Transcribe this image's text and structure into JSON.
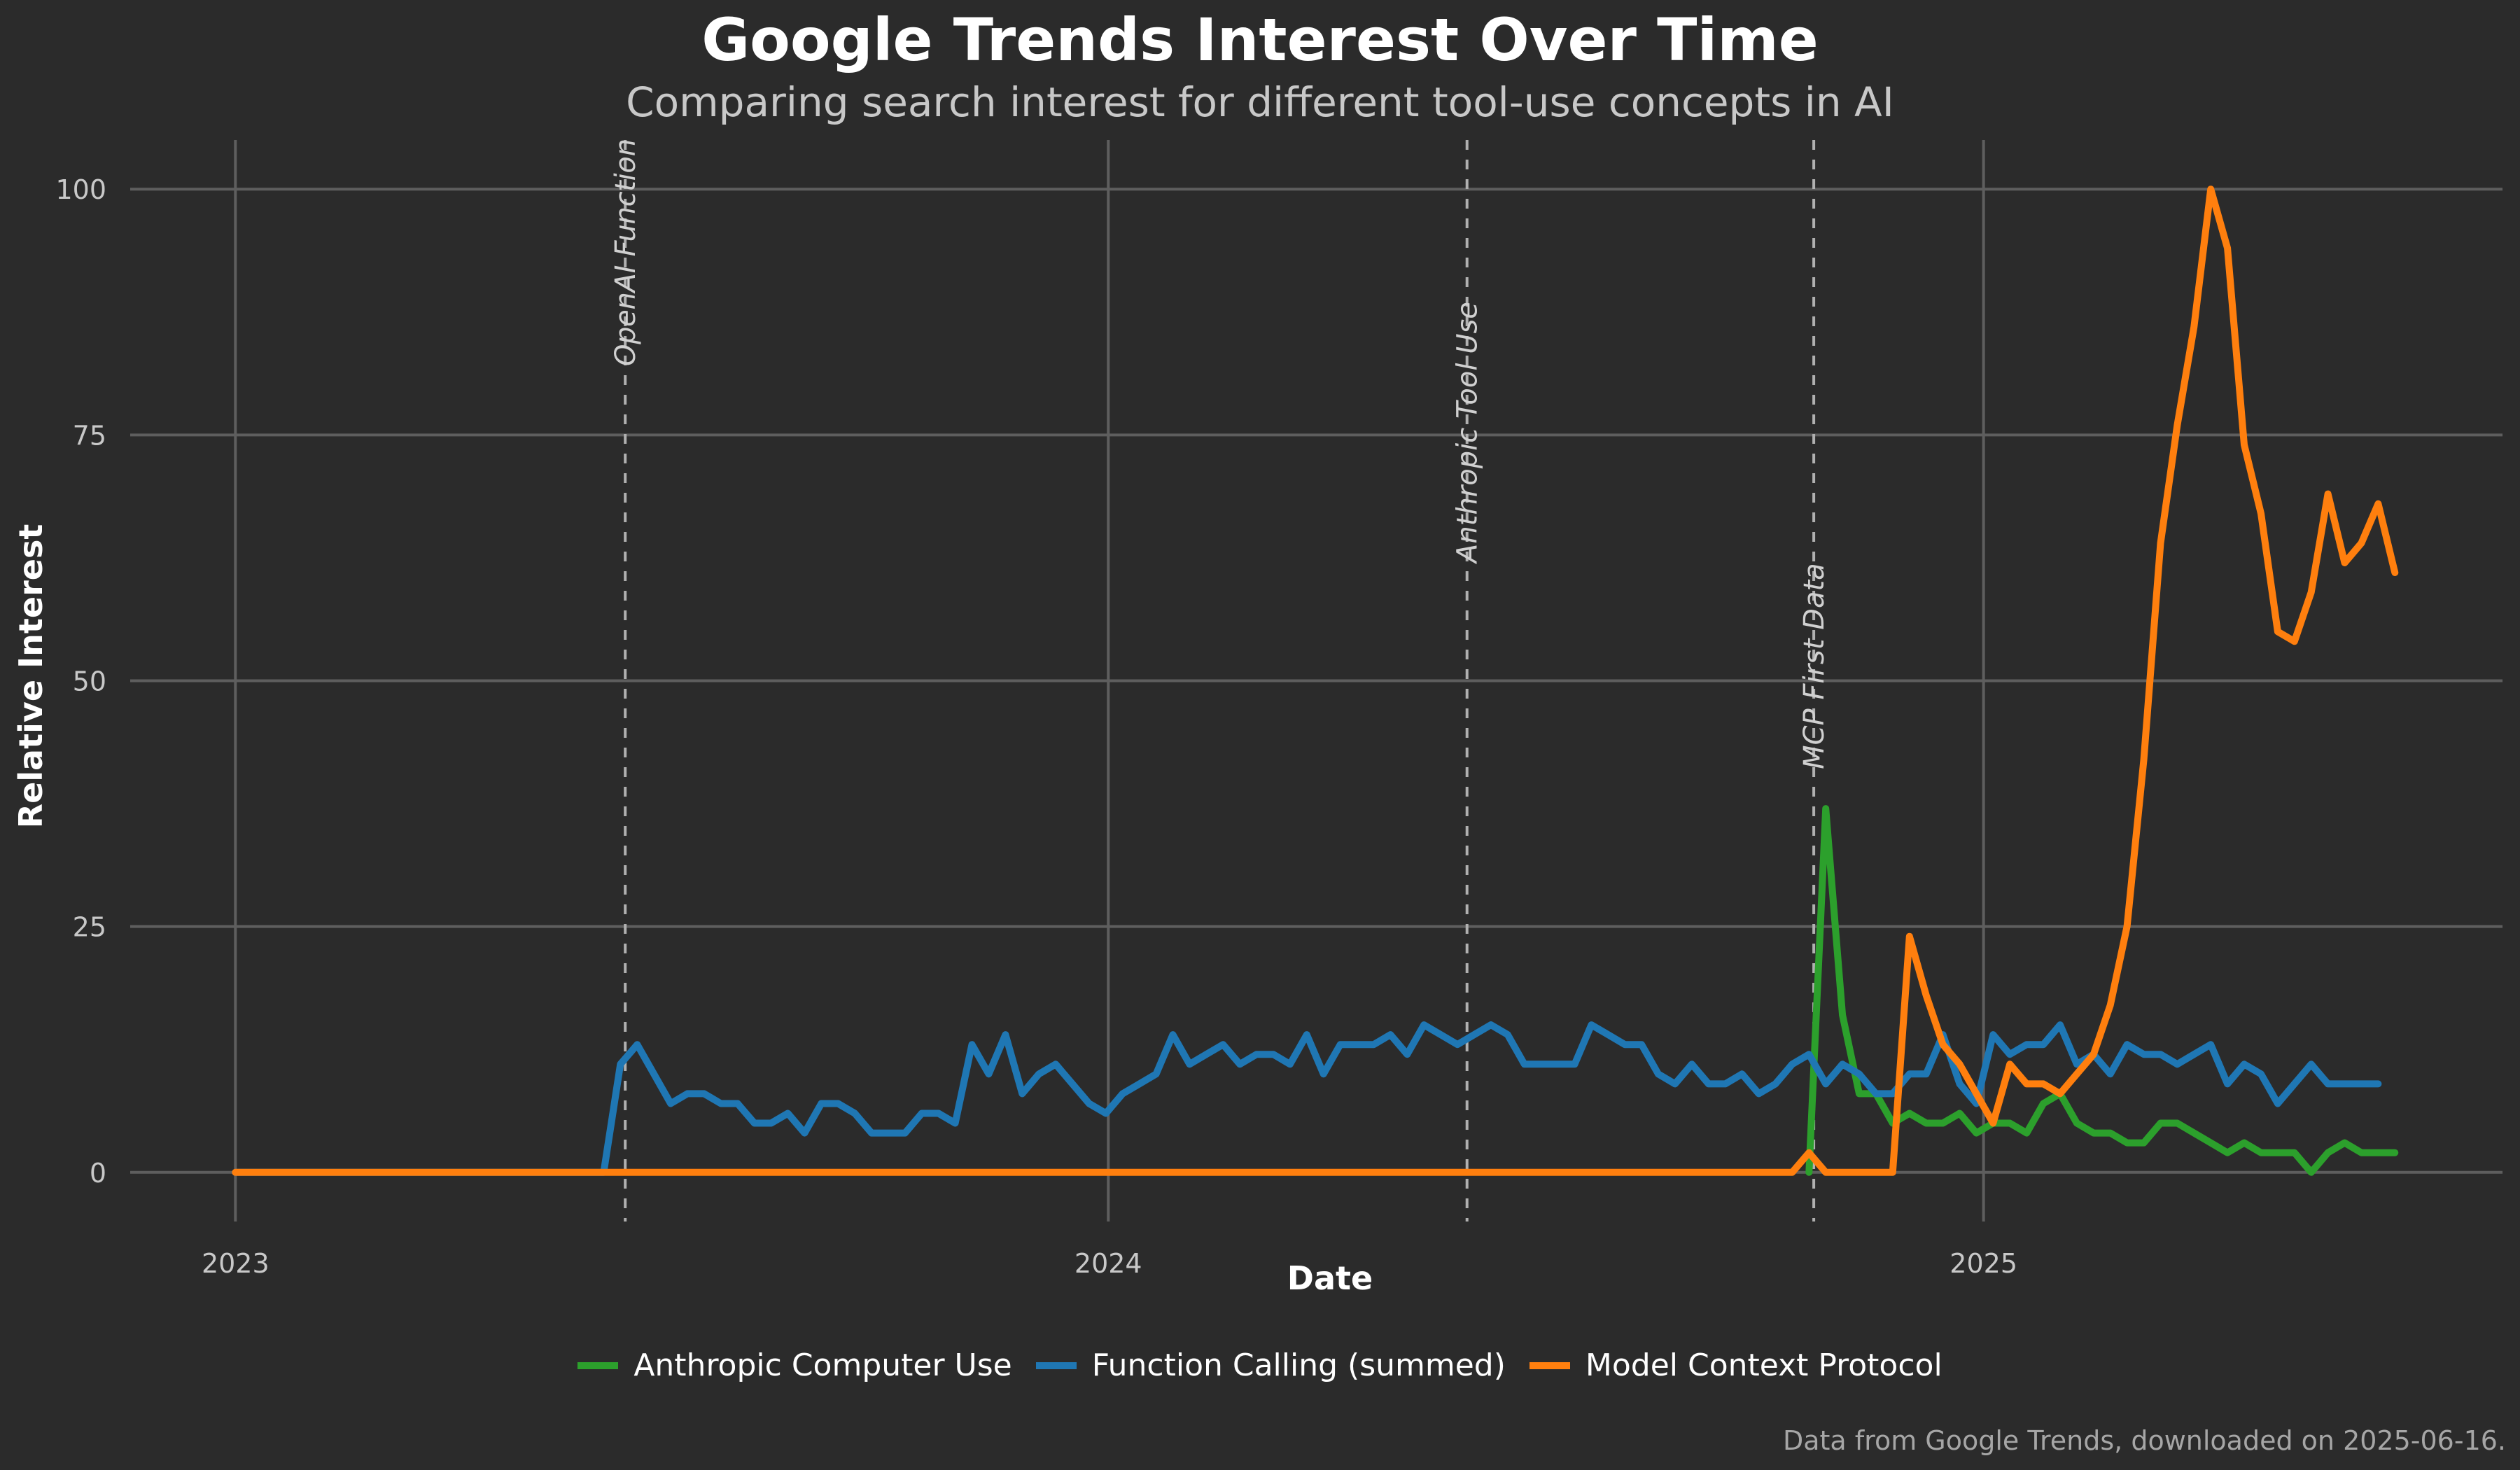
{
  "chart_data": {
    "type": "line",
    "title": "Google Trends Interest Over Time",
    "subtitle": "Comparing search interest for different tool-use concepts in AI",
    "xlabel": "Date",
    "ylabel": "Relative Interest",
    "xlim": [
      "2022-11-18",
      "2025-08-06"
    ],
    "ylim": [
      -5,
      105
    ],
    "xticks": [
      {
        "date": "2023-01-01",
        "label": "2023"
      },
      {
        "date": "2024-01-01",
        "label": "2024"
      },
      {
        "date": "2025-01-01",
        "label": "2025"
      }
    ],
    "yticks": [
      0,
      25,
      50,
      75,
      100
    ],
    "grid": true,
    "legend_position": "bottom-center",
    "annotations": [
      {
        "date": "2023-06-13",
        "label": "OpenAI Function"
      },
      {
        "date": "2024-05-30",
        "label": "Anthropic Tool Use"
      },
      {
        "date": "2024-10-22",
        "label": "MCP First Data"
      }
    ],
    "series": [
      {
        "name": "Anthropic Computer Use",
        "color": "#2ca02c",
        "points": [
          [
            "2024-10-20",
            0
          ],
          [
            "2024-10-27",
            37
          ],
          [
            "2024-11-03",
            16
          ],
          [
            "2024-11-10",
            8
          ],
          [
            "2024-11-17",
            8
          ],
          [
            "2024-11-24",
            5
          ],
          [
            "2024-12-01",
            6
          ],
          [
            "2024-12-08",
            5
          ],
          [
            "2024-12-15",
            5
          ],
          [
            "2024-12-22",
            6
          ],
          [
            "2024-12-29",
            4
          ],
          [
            "2025-01-05",
            5
          ],
          [
            "2025-01-12",
            5
          ],
          [
            "2025-01-19",
            4
          ],
          [
            "2025-01-26",
            7
          ],
          [
            "2025-02-02",
            8
          ],
          [
            "2025-02-09",
            5
          ],
          [
            "2025-02-16",
            4
          ],
          [
            "2025-02-23",
            4
          ],
          [
            "2025-03-02",
            3
          ],
          [
            "2025-03-09",
            3
          ],
          [
            "2025-03-16",
            5
          ],
          [
            "2025-03-23",
            5
          ],
          [
            "2025-03-30",
            4
          ],
          [
            "2025-04-06",
            3
          ],
          [
            "2025-04-13",
            2
          ],
          [
            "2025-04-20",
            3
          ],
          [
            "2025-04-27",
            2
          ],
          [
            "2025-05-04",
            2
          ],
          [
            "2025-05-11",
            2
          ],
          [
            "2025-05-18",
            0
          ],
          [
            "2025-05-25",
            2
          ],
          [
            "2025-06-01",
            3
          ],
          [
            "2025-06-08",
            2
          ],
          [
            "2025-06-15",
            2
          ],
          [
            "2025-06-22",
            2
          ]
        ]
      },
      {
        "name": "Function Calling (summed)",
        "color": "#1f77b4",
        "points": [
          [
            "2023-01-01",
            0
          ],
          [
            "2023-06-04",
            0
          ],
          [
            "2023-06-11",
            11
          ],
          [
            "2023-06-18",
            13
          ],
          [
            "2023-06-25",
            10
          ],
          [
            "2023-07-02",
            7
          ],
          [
            "2023-07-09",
            8
          ],
          [
            "2023-07-16",
            8
          ],
          [
            "2023-07-23",
            7
          ],
          [
            "2023-07-30",
            7
          ],
          [
            "2023-08-06",
            5
          ],
          [
            "2023-08-13",
            5
          ],
          [
            "2023-08-20",
            6
          ],
          [
            "2023-08-27",
            4
          ],
          [
            "2023-09-03",
            7
          ],
          [
            "2023-09-10",
            7
          ],
          [
            "2023-09-17",
            6
          ],
          [
            "2023-09-24",
            4
          ],
          [
            "2023-10-01",
            4
          ],
          [
            "2023-10-08",
            4
          ],
          [
            "2023-10-15",
            6
          ],
          [
            "2023-10-22",
            6
          ],
          [
            "2023-10-29",
            5
          ],
          [
            "2023-11-05",
            13
          ],
          [
            "2023-11-12",
            10
          ],
          [
            "2023-11-19",
            14
          ],
          [
            "2023-11-26",
            8
          ],
          [
            "2023-12-03",
            10
          ],
          [
            "2023-12-10",
            11
          ],
          [
            "2023-12-17",
            9
          ],
          [
            "2023-12-24",
            7
          ],
          [
            "2023-12-31",
            6
          ],
          [
            "2024-01-07",
            8
          ],
          [
            "2024-01-14",
            9
          ],
          [
            "2024-01-21",
            10
          ],
          [
            "2024-01-28",
            14
          ],
          [
            "2024-02-04",
            11
          ],
          [
            "2024-02-11",
            12
          ],
          [
            "2024-02-18",
            13
          ],
          [
            "2024-02-25",
            11
          ],
          [
            "2024-03-03",
            12
          ],
          [
            "2024-03-10",
            12
          ],
          [
            "2024-03-17",
            11
          ],
          [
            "2024-03-24",
            14
          ],
          [
            "2024-03-31",
            10
          ],
          [
            "2024-04-07",
            13
          ],
          [
            "2024-04-14",
            13
          ],
          [
            "2024-04-21",
            13
          ],
          [
            "2024-04-28",
            14
          ],
          [
            "2024-05-05",
            12
          ],
          [
            "2024-05-12",
            15
          ],
          [
            "2024-05-19",
            14
          ],
          [
            "2024-05-26",
            13
          ],
          [
            "2024-06-02",
            14
          ],
          [
            "2024-06-09",
            15
          ],
          [
            "2024-06-16",
            14
          ],
          [
            "2024-06-23",
            11
          ],
          [
            "2024-06-30",
            11
          ],
          [
            "2024-07-07",
            11
          ],
          [
            "2024-07-14",
            11
          ],
          [
            "2024-07-21",
            15
          ],
          [
            "2024-07-28",
            14
          ],
          [
            "2024-08-04",
            13
          ],
          [
            "2024-08-11",
            13
          ],
          [
            "2024-08-18",
            10
          ],
          [
            "2024-08-25",
            9
          ],
          [
            "2024-09-01",
            11
          ],
          [
            "2024-09-08",
            9
          ],
          [
            "2024-09-15",
            9
          ],
          [
            "2024-09-22",
            10
          ],
          [
            "2024-09-29",
            8
          ],
          [
            "2024-10-06",
            9
          ],
          [
            "2024-10-13",
            11
          ],
          [
            "2024-10-20",
            12
          ],
          [
            "2024-10-27",
            9
          ],
          [
            "2024-11-03",
            11
          ],
          [
            "2024-11-10",
            10
          ],
          [
            "2024-11-17",
            8
          ],
          [
            "2024-11-24",
            8
          ],
          [
            "2024-12-01",
            10
          ],
          [
            "2024-12-08",
            10
          ],
          [
            "2024-12-15",
            14
          ],
          [
            "2024-12-22",
            9
          ],
          [
            "2024-12-29",
            7
          ],
          [
            "2025-01-05",
            14
          ],
          [
            "2025-01-12",
            12
          ],
          [
            "2025-01-19",
            13
          ],
          [
            "2025-01-26",
            13
          ],
          [
            "2025-02-02",
            15
          ],
          [
            "2025-02-09",
            11
          ],
          [
            "2025-02-16",
            12
          ],
          [
            "2025-02-23",
            10
          ],
          [
            "2025-03-02",
            13
          ],
          [
            "2025-03-09",
            12
          ],
          [
            "2025-03-16",
            12
          ],
          [
            "2025-03-23",
            11
          ],
          [
            "2025-03-30",
            12
          ],
          [
            "2025-04-06",
            13
          ],
          [
            "2025-04-13",
            9
          ],
          [
            "2025-04-20",
            11
          ],
          [
            "2025-04-27",
            10
          ],
          [
            "2025-05-04",
            7
          ],
          [
            "2025-05-11",
            9
          ],
          [
            "2025-05-18",
            11
          ],
          [
            "2025-05-25",
            9
          ],
          [
            "2025-06-01",
            9
          ],
          [
            "2025-06-08",
            9
          ],
          [
            "2025-06-15",
            9
          ]
        ]
      },
      {
        "name": "Model Context Protocol",
        "color": "#ff7f0e",
        "points": [
          [
            "2023-01-01",
            0
          ],
          [
            "2024-10-13",
            0
          ],
          [
            "2024-10-20",
            2
          ],
          [
            "2024-10-27",
            0
          ],
          [
            "2024-11-03",
            0
          ],
          [
            "2024-11-10",
            0
          ],
          [
            "2024-11-17",
            0
          ],
          [
            "2024-11-24",
            0
          ],
          [
            "2024-12-01",
            24
          ],
          [
            "2024-12-08",
            18
          ],
          [
            "2024-12-15",
            13
          ],
          [
            "2024-12-22",
            11
          ],
          [
            "2024-12-29",
            8
          ],
          [
            "2025-01-05",
            5
          ],
          [
            "2025-01-12",
            11
          ],
          [
            "2025-01-19",
            9
          ],
          [
            "2025-01-26",
            9
          ],
          [
            "2025-02-02",
            8
          ],
          [
            "2025-02-09",
            10
          ],
          [
            "2025-02-16",
            12
          ],
          [
            "2025-02-23",
            17
          ],
          [
            "2025-03-02",
            25
          ],
          [
            "2025-03-09",
            42
          ],
          [
            "2025-03-16",
            64
          ],
          [
            "2025-03-23",
            76
          ],
          [
            "2025-03-30",
            86
          ],
          [
            "2025-04-06",
            100
          ],
          [
            "2025-04-13",
            94
          ],
          [
            "2025-04-20",
            74
          ],
          [
            "2025-04-27",
            67
          ],
          [
            "2025-05-04",
            55
          ],
          [
            "2025-05-11",
            54
          ],
          [
            "2025-05-18",
            59
          ],
          [
            "2025-05-25",
            69
          ],
          [
            "2025-06-01",
            62
          ],
          [
            "2025-06-08",
            64
          ],
          [
            "2025-06-15",
            68
          ],
          [
            "2025-06-22",
            61
          ]
        ]
      }
    ],
    "footer": "Data from Google Trends, downloaded on 2025-06-16."
  }
}
